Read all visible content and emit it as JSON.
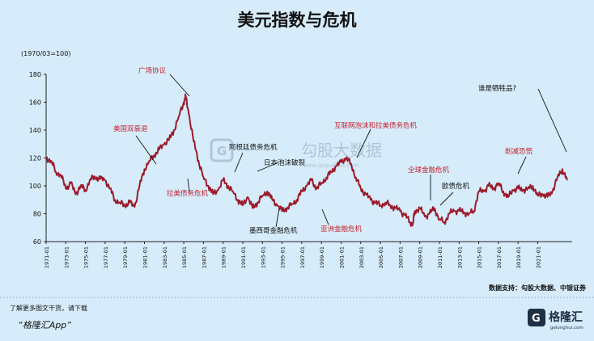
{
  "chart_data": {
    "type": "line",
    "title": "美元指数与危机",
    "ylabel": "(1970/03=100)",
    "ylim": [
      60,
      180
    ],
    "yticks": [
      60,
      80,
      100,
      120,
      140,
      160,
      180
    ],
    "xlim": [
      1971,
      2024.5
    ],
    "xtick_labels": [
      "1971-01",
      "1973-01",
      "1975-01",
      "1977-01",
      "1979-01",
      "1981-01",
      "1983-01",
      "1985-01",
      "1987-01",
      "1989-01",
      "1991-01",
      "1993-01",
      "1995-01",
      "1997-01",
      "1999-01",
      "2001-01",
      "2003-01",
      "2005-01",
      "2007-01",
      "2009-01",
      "2011-01",
      "2013-01",
      "2015-01",
      "2017-01",
      "2019-01",
      "2021-01"
    ],
    "grid": false,
    "legend": "none",
    "series": [
      {
        "color": "#9b1b2b",
        "x": [
          1971.0,
          1971.5,
          1972.0,
          1972.5,
          1973.0,
          1973.5,
          1974.0,
          1974.5,
          1975.0,
          1975.5,
          1976.0,
          1976.5,
          1977.0,
          1977.5,
          1978.0,
          1978.5,
          1979.0,
          1979.5,
          1980.0,
          1980.5,
          1981.0,
          1981.5,
          1982.0,
          1982.5,
          1983.0,
          1983.5,
          1984.0,
          1984.5,
          1985.0,
          1985.2,
          1985.5,
          1986.0,
          1986.5,
          1987.0,
          1987.5,
          1988.0,
          1988.5,
          1989.0,
          1989.5,
          1990.0,
          1990.5,
          1991.0,
          1991.5,
          1992.0,
          1992.5,
          1993.0,
          1993.5,
          1994.0,
          1994.5,
          1995.0,
          1995.5,
          1996.0,
          1996.5,
          1997.0,
          1997.5,
          1998.0,
          1998.5,
          1999.0,
          1999.5,
          2000.0,
          2000.5,
          2001.0,
          2001.5,
          2002.0,
          2002.5,
          2003.0,
          2003.5,
          2004.0,
          2004.5,
          2005.0,
          2005.5,
          2006.0,
          2006.5,
          2007.0,
          2007.5,
          2008.0,
          2008.3,
          2008.5,
          2009.0,
          2009.5,
          2010.0,
          2010.5,
          2011.0,
          2011.5,
          2012.0,
          2012.5,
          2013.0,
          2013.5,
          2014.0,
          2014.5,
          2015.0,
          2015.5,
          2016.0,
          2016.5,
          2017.0,
          2017.5,
          2018.0,
          2018.5,
          2019.0,
          2019.5,
          2020.0,
          2020.5,
          2021.0,
          2021.5,
          2022.0,
          2022.5,
          2023.0,
          2023.5,
          2024.0
        ],
        "y": [
          120,
          118,
          110,
          108,
          98,
          102,
          94,
          100,
          97,
          105,
          106,
          105,
          104,
          98,
          90,
          88,
          86,
          88,
          85,
          100,
          112,
          118,
          122,
          126,
          130,
          133,
          140,
          150,
          160,
          164,
          152,
          132,
          118,
          106,
          100,
          94,
          97,
          104,
          100,
          96,
          90,
          86,
          92,
          84,
          88,
          93,
          96,
          90,
          86,
          82,
          84,
          87,
          90,
          96,
          100,
          104,
          98,
          102,
          106,
          110,
          114,
          117,
          120,
          116,
          106,
          98,
          94,
          90,
          88,
          86,
          88,
          86,
          84,
          82,
          79,
          74,
          73,
          82,
          84,
          78,
          80,
          84,
          76,
          74,
          80,
          82,
          82,
          81,
          80,
          82,
          96,
          96,
          100,
          98,
          102,
          96,
          92,
          97,
          98,
          97,
          98,
          100,
          93,
          94,
          92,
          96,
          106,
          112,
          104
        ]
      }
    ],
    "annotations": [
      {
        "text": "美国双衰退",
        "x": 1980.0,
        "y": 132
      },
      {
        "text": "拉美债务危机",
        "x": 1984.5,
        "y": 109
      },
      {
        "text": "广场协议",
        "x": 1984.5,
        "y": 168
      },
      {
        "text": "阿根廷债务危机",
        "x": 1990.0,
        "y": 104
      },
      {
        "text": "日本泡沫破裂",
        "x": 1991.5,
        "y": 90
      },
      {
        "text": "墨西哥金融危机",
        "x": 1994.5,
        "y": 79
      },
      {
        "text": "亚洲金融危机",
        "x": 1997.8,
        "y": 100
      },
      {
        "text": "互联网泡沫和拉美债务危机",
        "x": 2001.2,
        "y": 120
      },
      {
        "text": "全球金融危机",
        "x": 2008.6,
        "y": 86
      },
      {
        "text": "欧债危机",
        "x": 2010.5,
        "y": 88
      },
      {
        "text": "削减恐慌",
        "x": 2016.0,
        "y": 104
      },
      {
        "text": "谁是牺牲品?",
        "x": 2023.2,
        "y": 130
      }
    ]
  },
  "watermark": "勾股大数据",
  "watermark_sub": "www.gogudata.com",
  "source": "数据支持：勾股大数据、中银证券",
  "promo_line1": "了解更多图文干货，请下载",
  "promo_line2": "“格隆汇App”",
  "logo_text": "格隆汇",
  "logo_sub": "gelonghui.com",
  "colors": {
    "background": "#d6ecfa",
    "line": "#9b1b2b",
    "annotation": "#c6222f",
    "text": "#111111"
  }
}
